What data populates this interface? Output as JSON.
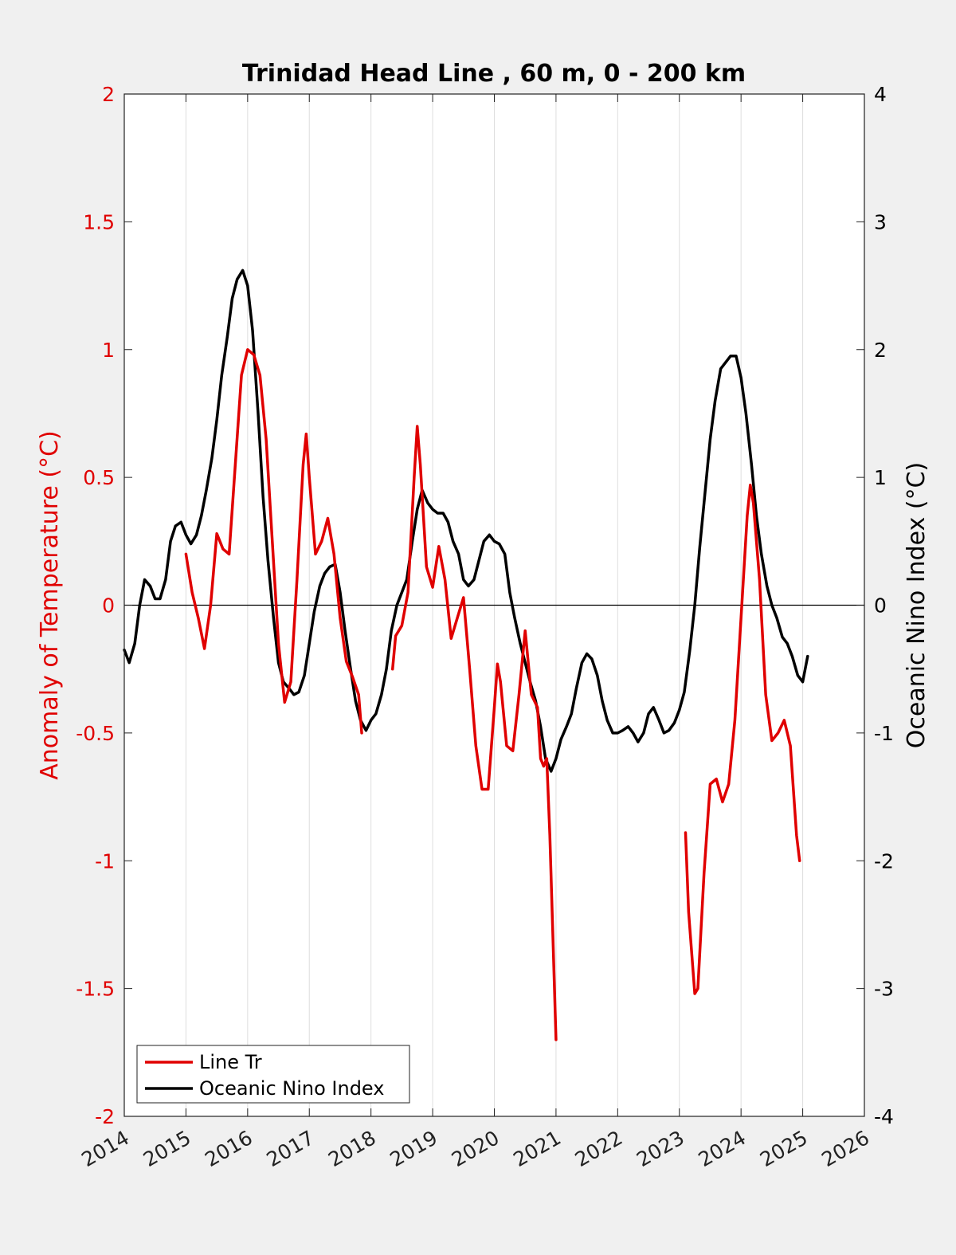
{
  "chart_data": {
    "type": "line",
    "title": "Trinidad Head Line , 60 m, 0 - 200 km",
    "ylabel_left": "Anomaly of Temperature (°C)",
    "ylabel_right": "Oceanic Nino Index (°C)",
    "xlim": [
      2014,
      2026
    ],
    "ylim_left": [
      -2,
      2
    ],
    "ylim_right": [
      -4,
      4
    ],
    "x_ticks": [
      "2014",
      "2015",
      "2016",
      "2017",
      "2018",
      "2019",
      "2020",
      "2021",
      "2022",
      "2023",
      "2024",
      "2025",
      "2026"
    ],
    "y_ticks_left": [
      "2",
      "1.5",
      "1",
      "0.5",
      "0",
      "-0.5",
      "-1",
      "-1.5",
      "-2"
    ],
    "y_ticks_right": [
      "4",
      "3",
      "2",
      "1",
      "0",
      "-1",
      "-2",
      "-3",
      "-4"
    ],
    "grid": "x-only",
    "legend_position": "bottom-left",
    "colors": {
      "line_tr": "#e00000",
      "oni": "#000000",
      "zero_line": "#000000"
    },
    "series": [
      {
        "name": "Line Tr",
        "axis": "left",
        "segments": [
          [
            [
              2015.0,
              0.2
            ],
            [
              2015.1,
              0.05
            ],
            [
              2015.2,
              -0.05
            ],
            [
              2015.3,
              -0.17
            ],
            [
              2015.4,
              0.0
            ],
            [
              2015.5,
              0.28
            ],
            [
              2015.6,
              0.22
            ],
            [
              2015.7,
              0.2
            ],
            [
              2015.8,
              0.55
            ],
            [
              2015.9,
              0.9
            ],
            [
              2016.0,
              1.0
            ],
            [
              2016.1,
              0.98
            ],
            [
              2016.2,
              0.9
            ],
            [
              2016.3,
              0.65
            ],
            [
              2016.4,
              0.25
            ],
            [
              2016.5,
              -0.15
            ],
            [
              2016.6,
              -0.38
            ],
            [
              2016.7,
              -0.3
            ],
            [
              2016.8,
              0.1
            ],
            [
              2016.9,
              0.55
            ],
            [
              2016.95,
              0.67
            ],
            [
              2017.0,
              0.5
            ],
            [
              2017.1,
              0.2
            ],
            [
              2017.2,
              0.25
            ],
            [
              2017.3,
              0.34
            ],
            [
              2017.4,
              0.2
            ],
            [
              2017.5,
              -0.05
            ],
            [
              2017.6,
              -0.22
            ],
            [
              2017.7,
              -0.28
            ],
            [
              2017.8,
              -0.35
            ],
            [
              2017.85,
              -0.5
            ]
          ],
          [
            [
              2018.35,
              -0.25
            ],
            [
              2018.4,
              -0.12
            ],
            [
              2018.5,
              -0.08
            ],
            [
              2018.6,
              0.05
            ],
            [
              2018.7,
              0.5
            ],
            [
              2018.75,
              0.7
            ],
            [
              2018.8,
              0.55
            ],
            [
              2018.9,
              0.15
            ],
            [
              2019.0,
              0.07
            ],
            [
              2019.1,
              0.23
            ],
            [
              2019.2,
              0.1
            ],
            [
              2019.3,
              -0.13
            ],
            [
              2019.4,
              -0.05
            ],
            [
              2019.5,
              0.03
            ],
            [
              2019.6,
              -0.25
            ],
            [
              2019.7,
              -0.55
            ],
            [
              2019.8,
              -0.72
            ],
            [
              2019.9,
              -0.72
            ],
            [
              2020.0,
              -0.4
            ],
            [
              2020.05,
              -0.23
            ],
            [
              2020.1,
              -0.3
            ],
            [
              2020.2,
              -0.55
            ],
            [
              2020.3,
              -0.57
            ],
            [
              2020.4,
              -0.35
            ],
            [
              2020.5,
              -0.1
            ],
            [
              2020.6,
              -0.35
            ],
            [
              2020.7,
              -0.4
            ],
            [
              2020.75,
              -0.6
            ],
            [
              2020.8,
              -0.63
            ],
            [
              2020.85,
              -0.6
            ],
            [
              2020.9,
              -0.9
            ],
            [
              2021.0,
              -1.7
            ]
          ],
          [
            [
              2023.1,
              -0.89
            ],
            [
              2023.15,
              -1.2
            ],
            [
              2023.25,
              -1.52
            ],
            [
              2023.3,
              -1.5
            ],
            [
              2023.4,
              -1.05
            ],
            [
              2023.5,
              -0.7
            ],
            [
              2023.6,
              -0.68
            ],
            [
              2023.7,
              -0.77
            ],
            [
              2023.8,
              -0.7
            ],
            [
              2023.9,
              -0.45
            ],
            [
              2024.0,
              -0.05
            ],
            [
              2024.1,
              0.35
            ],
            [
              2024.15,
              0.47
            ],
            [
              2024.2,
              0.4
            ],
            [
              2024.3,
              0.1
            ],
            [
              2024.4,
              -0.35
            ],
            [
              2024.5,
              -0.53
            ],
            [
              2024.6,
              -0.5
            ],
            [
              2024.7,
              -0.45
            ],
            [
              2024.8,
              -0.55
            ],
            [
              2024.9,
              -0.9
            ],
            [
              2024.95,
              -1.0
            ]
          ]
        ]
      },
      {
        "name": "Oceanic Nino Index",
        "axis": "right",
        "segments": [
          [
            [
              2014.0,
              -0.35
            ],
            [
              2014.08,
              -0.45
            ],
            [
              2014.17,
              -0.3
            ],
            [
              2014.25,
              0.0
            ],
            [
              2014.33,
              0.2
            ],
            [
              2014.42,
              0.15
            ],
            [
              2014.5,
              0.05
            ],
            [
              2014.58,
              0.05
            ],
            [
              2014.67,
              0.2
            ],
            [
              2014.75,
              0.5
            ],
            [
              2014.83,
              0.62
            ],
            [
              2014.92,
              0.65
            ],
            [
              2015.0,
              0.55
            ],
            [
              2015.08,
              0.48
            ],
            [
              2015.17,
              0.55
            ],
            [
              2015.25,
              0.7
            ],
            [
              2015.33,
              0.9
            ],
            [
              2015.42,
              1.15
            ],
            [
              2015.5,
              1.45
            ],
            [
              2015.58,
              1.8
            ],
            [
              2015.67,
              2.1
            ],
            [
              2015.75,
              2.4
            ],
            [
              2015.83,
              2.55
            ],
            [
              2015.92,
              2.62
            ],
            [
              2016.0,
              2.5
            ],
            [
              2016.08,
              2.15
            ],
            [
              2016.17,
              1.5
            ],
            [
              2016.25,
              0.85
            ],
            [
              2016.33,
              0.35
            ],
            [
              2016.42,
              -0.1
            ],
            [
              2016.5,
              -0.45
            ],
            [
              2016.58,
              -0.6
            ],
            [
              2016.67,
              -0.65
            ],
            [
              2016.75,
              -0.7
            ],
            [
              2016.83,
              -0.68
            ],
            [
              2016.92,
              -0.55
            ],
            [
              2017.0,
              -0.3
            ],
            [
              2017.08,
              -0.05
            ],
            [
              2017.17,
              0.15
            ],
            [
              2017.25,
              0.25
            ],
            [
              2017.33,
              0.3
            ],
            [
              2017.42,
              0.32
            ],
            [
              2017.5,
              0.1
            ],
            [
              2017.58,
              -0.2
            ],
            [
              2017.67,
              -0.5
            ],
            [
              2017.75,
              -0.75
            ],
            [
              2017.83,
              -0.9
            ],
            [
              2017.92,
              -0.98
            ],
            [
              2018.0,
              -0.9
            ],
            [
              2018.08,
              -0.85
            ],
            [
              2018.17,
              -0.7
            ],
            [
              2018.25,
              -0.5
            ],
            [
              2018.33,
              -0.2
            ],
            [
              2018.42,
              0.0
            ],
            [
              2018.5,
              0.1
            ],
            [
              2018.58,
              0.2
            ],
            [
              2018.67,
              0.5
            ],
            [
              2018.75,
              0.75
            ],
            [
              2018.83,
              0.9
            ],
            [
              2018.92,
              0.8
            ],
            [
              2019.0,
              0.75
            ],
            [
              2019.08,
              0.72
            ],
            [
              2019.17,
              0.72
            ],
            [
              2019.25,
              0.65
            ],
            [
              2019.33,
              0.5
            ],
            [
              2019.42,
              0.4
            ],
            [
              2019.5,
              0.2
            ],
            [
              2019.58,
              0.15
            ],
            [
              2019.67,
              0.2
            ],
            [
              2019.75,
              0.35
            ],
            [
              2019.83,
              0.5
            ],
            [
              2019.92,
              0.55
            ],
            [
              2020.0,
              0.5
            ],
            [
              2020.08,
              0.48
            ],
            [
              2020.17,
              0.4
            ],
            [
              2020.25,
              0.1
            ],
            [
              2020.33,
              -0.1
            ],
            [
              2020.42,
              -0.3
            ],
            [
              2020.5,
              -0.45
            ],
            [
              2020.58,
              -0.6
            ],
            [
              2020.67,
              -0.75
            ],
            [
              2020.75,
              -0.95
            ],
            [
              2020.83,
              -1.2
            ],
            [
              2020.92,
              -1.3
            ],
            [
              2021.0,
              -1.2
            ],
            [
              2021.08,
              -1.05
            ],
            [
              2021.17,
              -0.95
            ],
            [
              2021.25,
              -0.85
            ],
            [
              2021.33,
              -0.65
            ],
            [
              2021.42,
              -0.45
            ],
            [
              2021.5,
              -0.38
            ],
            [
              2021.58,
              -0.42
            ],
            [
              2021.67,
              -0.55
            ],
            [
              2021.75,
              -0.75
            ],
            [
              2021.83,
              -0.9
            ],
            [
              2021.92,
              -1.0
            ],
            [
              2022.0,
              -1.0
            ],
            [
              2022.08,
              -0.98
            ],
            [
              2022.17,
              -0.95
            ],
            [
              2022.25,
              -1.0
            ],
            [
              2022.33,
              -1.07
            ],
            [
              2022.42,
              -1.0
            ],
            [
              2022.5,
              -0.85
            ],
            [
              2022.58,
              -0.8
            ],
            [
              2022.67,
              -0.9
            ],
            [
              2022.75,
              -1.0
            ],
            [
              2022.83,
              -0.98
            ],
            [
              2022.92,
              -0.92
            ],
            [
              2023.0,
              -0.82
            ],
            [
              2023.08,
              -0.68
            ],
            [
              2023.17,
              -0.35
            ],
            [
              2023.25,
              0.0
            ],
            [
              2023.33,
              0.45
            ],
            [
              2023.42,
              0.9
            ],
            [
              2023.5,
              1.3
            ],
            [
              2023.58,
              1.6
            ],
            [
              2023.67,
              1.85
            ],
            [
              2023.75,
              1.9
            ],
            [
              2023.83,
              1.95
            ],
            [
              2023.92,
              1.95
            ],
            [
              2024.0,
              1.78
            ],
            [
              2024.08,
              1.5
            ],
            [
              2024.17,
              1.1
            ],
            [
              2024.25,
              0.7
            ],
            [
              2024.33,
              0.4
            ],
            [
              2024.42,
              0.15
            ],
            [
              2024.5,
              0.0
            ],
            [
              2024.58,
              -0.1
            ],
            [
              2024.67,
              -0.25
            ],
            [
              2024.75,
              -0.3
            ],
            [
              2024.83,
              -0.4
            ],
            [
              2024.92,
              -0.55
            ],
            [
              2025.0,
              -0.6
            ],
            [
              2025.08,
              -0.4
            ]
          ]
        ]
      }
    ]
  }
}
